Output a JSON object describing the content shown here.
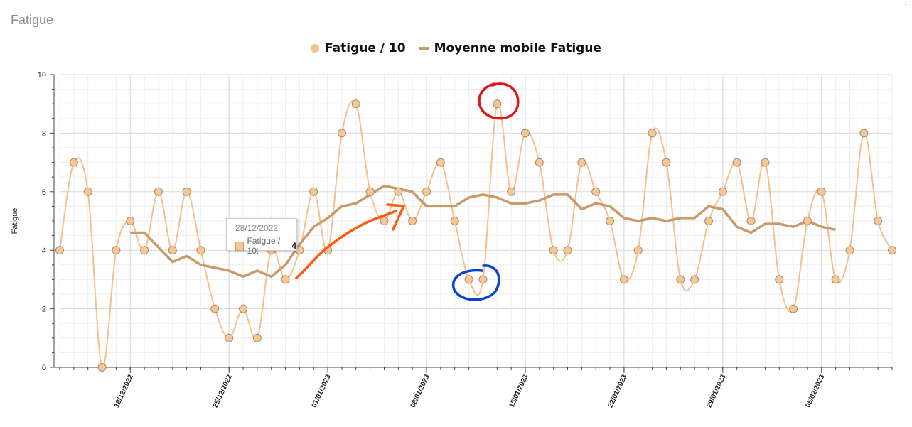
{
  "page": {
    "title": "Fatigue"
  },
  "menu": {
    "icon": "more-vertical-icon"
  },
  "legend": {
    "items": [
      {
        "label": "Fatigue / 10",
        "symbol": "dot",
        "color": "#f5c08b"
      },
      {
        "label": "Moyenne mobile Fatigue",
        "symbol": "line",
        "color": "#c89b6a"
      }
    ]
  },
  "tooltip": {
    "date": "28/12/2022",
    "series_label": "Fatigue / 10:",
    "value": "4"
  },
  "colors": {
    "fatigue_line": "#f5c08b",
    "fatigue_dot_fill": "#f8c791",
    "fatigue_dot_stroke": "#a08a78",
    "moving_avg": "#c89b6a",
    "grid_major": "#d9d9d9",
    "grid_minor": "#eeeeee",
    "annotation_red": "#e3141b",
    "annotation_blue": "#0a43d6",
    "annotation_orange": "#ff5a10"
  },
  "chart_data": {
    "type": "line",
    "ylabel": "Fatigue",
    "xlabel": "",
    "ylim": [
      0,
      10
    ],
    "yticks": [
      0,
      2,
      4,
      6,
      8,
      10
    ],
    "xlim": [
      "2022-12-13",
      "2023-02-10"
    ],
    "xticks": [
      {
        "date": "2022-12-18",
        "label": "18/12/2022"
      },
      {
        "date": "2022-12-25",
        "label": "25/12/2022"
      },
      {
        "date": "2023-01-01",
        "label": "01/01/2023"
      },
      {
        "date": "2023-01-08",
        "label": "08/01/2023"
      },
      {
        "date": "2023-01-15",
        "label": "15/01/2023"
      },
      {
        "date": "2023-01-22",
        "label": "22/01/2023"
      },
      {
        "date": "2023-01-29",
        "label": "29/01/2023"
      },
      {
        "date": "2023-02-05",
        "label": "05/02/2023"
      }
    ],
    "grid": true,
    "legend_position": "top-center",
    "series": [
      {
        "name": "Fatigue / 10",
        "style": "smooth-line-with-markers",
        "x": [
          "2022-12-13",
          "2022-12-14",
          "2022-12-15",
          "2022-12-16",
          "2022-12-17",
          "2022-12-18",
          "2022-12-19",
          "2022-12-20",
          "2022-12-21",
          "2022-12-22",
          "2022-12-23",
          "2022-12-24",
          "2022-12-25",
          "2022-12-26",
          "2022-12-27",
          "2022-12-28",
          "2022-12-29",
          "2022-12-30",
          "2022-12-31",
          "2023-01-01",
          "2023-01-02",
          "2023-01-03",
          "2023-01-04",
          "2023-01-05",
          "2023-01-06",
          "2023-01-07",
          "2023-01-08",
          "2023-01-09",
          "2023-01-10",
          "2023-01-11",
          "2023-01-12",
          "2023-01-13",
          "2023-01-14",
          "2023-01-15",
          "2023-01-16",
          "2023-01-17",
          "2023-01-18",
          "2023-01-19",
          "2023-01-20",
          "2023-01-21",
          "2023-01-22",
          "2023-01-23",
          "2023-01-24",
          "2023-01-25",
          "2023-01-26",
          "2023-01-27",
          "2023-01-28",
          "2023-01-29",
          "2023-01-30",
          "2023-01-31",
          "2023-02-01",
          "2023-02-02",
          "2023-02-03",
          "2023-02-04",
          "2023-02-05",
          "2023-02-06",
          "2023-02-07",
          "2023-02-08",
          "2023-02-09",
          "2023-02-10"
        ],
        "values": [
          4,
          7,
          6,
          0,
          4,
          5,
          4,
          6,
          4,
          6,
          4,
          2,
          1,
          2,
          1,
          4,
          3,
          4,
          6,
          4,
          8,
          9,
          6,
          5,
          6,
          5,
          6,
          7,
          5,
          3,
          3,
          9,
          6,
          8,
          7,
          4,
          4,
          7,
          6,
          5,
          3,
          4,
          8,
          7,
          3,
          3,
          5,
          6,
          7,
          5,
          7,
          3,
          2,
          5,
          6,
          3,
          4,
          8,
          5,
          4
        ]
      },
      {
        "name": "Moyenne mobile Fatigue",
        "style": "line",
        "x": [
          "2022-12-18",
          "2022-12-19",
          "2022-12-20",
          "2022-12-21",
          "2022-12-22",
          "2022-12-23",
          "2022-12-24",
          "2022-12-25",
          "2022-12-26",
          "2022-12-27",
          "2022-12-28",
          "2022-12-29",
          "2022-12-30",
          "2022-12-31",
          "2023-01-01",
          "2023-01-02",
          "2023-01-03",
          "2023-01-04",
          "2023-01-05",
          "2023-01-06",
          "2023-01-07",
          "2023-01-08",
          "2023-01-09",
          "2023-01-10",
          "2023-01-11",
          "2023-01-12",
          "2023-01-13",
          "2023-01-14",
          "2023-01-15",
          "2023-01-16",
          "2023-01-17",
          "2023-01-18",
          "2023-01-19",
          "2023-01-20",
          "2023-01-21",
          "2023-01-22",
          "2023-01-23",
          "2023-01-24",
          "2023-01-25",
          "2023-01-26",
          "2023-01-27",
          "2023-01-28",
          "2023-01-29",
          "2023-01-30",
          "2023-01-31",
          "2023-02-01",
          "2023-02-02",
          "2023-02-03",
          "2023-02-04",
          "2023-02-05",
          "2023-02-06"
        ],
        "values": [
          4.6,
          4.6,
          4.1,
          3.6,
          3.8,
          3.5,
          3.4,
          3.3,
          3.1,
          3.3,
          3.1,
          3.5,
          4.2,
          4.8,
          5.1,
          5.5,
          5.6,
          5.9,
          6.2,
          6.1,
          6.0,
          5.5,
          5.5,
          5.5,
          5.8,
          5.9,
          5.8,
          5.6,
          5.6,
          5.7,
          5.9,
          5.9,
          5.4,
          5.6,
          5.5,
          5.1,
          5.0,
          5.1,
          5.0,
          5.1,
          5.1,
          5.5,
          5.4,
          4.8,
          4.6,
          4.9,
          4.9,
          4.8,
          5.0,
          4.8,
          4.7
        ]
      }
    ]
  }
}
